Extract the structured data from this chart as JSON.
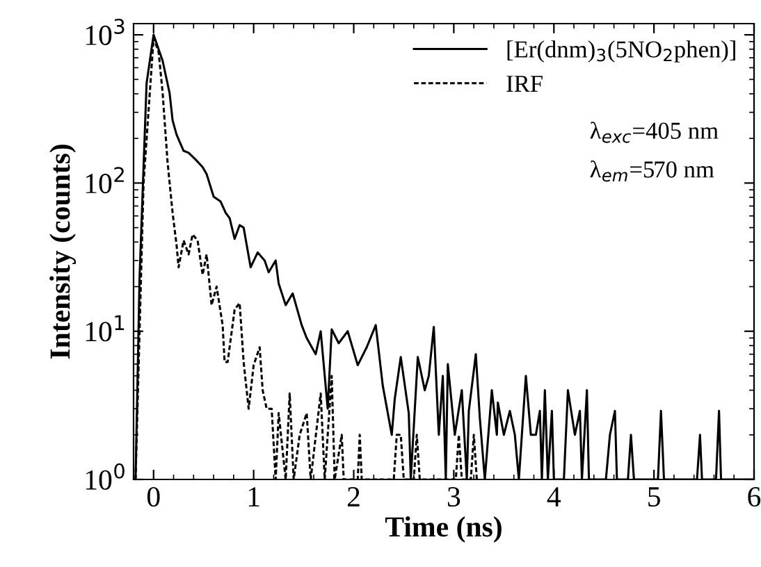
{
  "chart_data": {
    "type": "line",
    "xlabel": "Time (ns)",
    "ylabel": "Intensity (counts)",
    "log": "y",
    "xlim": [
      -0.2,
      6
    ],
    "ylim": [
      1,
      1190
    ],
    "xticks": [
      0,
      1,
      2,
      3,
      4,
      5,
      6
    ],
    "yticks": [
      {
        "value": 1,
        "label": "10$^{0}$"
      },
      {
        "value": 10,
        "label": "10$^{1}$"
      },
      {
        "value": 100,
        "label": "10$^{2}$"
      },
      {
        "value": 1000,
        "label": "10$^{3}$"
      }
    ],
    "grid": false,
    "legend": "top right",
    "marker": "none",
    "series": [
      {
        "name": "[Er(dnm)$_{3}$(5NO$_{2}$phen)]",
        "color": "#000000",
        "line_style": "solid",
        "x": [
          -0.18,
          -0.14,
          -0.07,
          0,
          0.09,
          0.16,
          0.19,
          0.23,
          0.3,
          0.35,
          0.42,
          0.49,
          0.53,
          0.6,
          0.67,
          0.72,
          0.76,
          0.81,
          0.86,
          0.9,
          0.97,
          1.04,
          1.11,
          1.15,
          1.22,
          1.25,
          1.32,
          1.39,
          1.48,
          1.53,
          1.62,
          1.67,
          1.74,
          1.78,
          1.85,
          1.94,
          2.04,
          2.13,
          2.22,
          2.29,
          2.38,
          2.41,
          2.47,
          2.55,
          2.57,
          2.64,
          2.71,
          2.75,
          2.8,
          2.85,
          2.89,
          2.92,
          2.94,
          3.01,
          3.08,
          3.13,
          3.15,
          3.22,
          3.26,
          3.31,
          3.38,
          3.43,
          3.44,
          3.5,
          3.56,
          3.61,
          3.65,
          3.68,
          3.72,
          3.77,
          3.82,
          3.86,
          3.88,
          3.91,
          3.94,
          3.98,
          4.0,
          4.1,
          4.14,
          4.21,
          4.26,
          4.28,
          4.33,
          4.35,
          4.52,
          4.56,
          4.61,
          4.63,
          4.74,
          4.77,
          4.8,
          5.04,
          5.07,
          5.1,
          5.43,
          5.46,
          5.48,
          5.62,
          5.65,
          5.67,
          6.0
        ],
        "values": [
          1,
          23,
          470,
          1000,
          670,
          405,
          265,
          212,
          165,
          160,
          144,
          128,
          115,
          81,
          75,
          63,
          58,
          42,
          52,
          50,
          27,
          34,
          30,
          25,
          30,
          21,
          15,
          18,
          11,
          9,
          7,
          10,
          3,
          10.3,
          8.3,
          10,
          5.9,
          7.8,
          11,
          4.3,
          2,
          3.5,
          6.7,
          2.8,
          1,
          6.7,
          4,
          5,
          10.7,
          2,
          5,
          1,
          6,
          2,
          4,
          1,
          2.9,
          7,
          2.6,
          1,
          4,
          2,
          3.3,
          2,
          2.9,
          2,
          1,
          2,
          5,
          2,
          2,
          2.9,
          1,
          4,
          1,
          2.9,
          1,
          1,
          4,
          2,
          2.9,
          1,
          4,
          1,
          1,
          2,
          2.9,
          1,
          1,
          2,
          1,
          1,
          2.9,
          1,
          1,
          2,
          1,
          1,
          2.9,
          1,
          1
        ]
      },
      {
        "name": "IRF",
        "color": "#000000",
        "line_style": "dashed",
        "x": [
          -0.18,
          -0.1,
          0,
          0.05,
          0.09,
          0.14,
          0.19,
          0.23,
          0.25,
          0.3,
          0.35,
          0.39,
          0.44,
          0.49,
          0.53,
          0.58,
          0.63,
          0.69,
          0.71,
          0.74,
          0.81,
          0.86,
          0.9,
          0.95,
          1.0,
          1.06,
          1.09,
          1.13,
          1.18,
          1.22,
          1.25,
          1.32,
          1.36,
          1.4,
          1.46,
          1.53,
          1.57,
          1.67,
          1.71,
          1.78,
          1.81,
          1.88,
          1.9,
          2.04,
          2.06,
          2.08,
          2.4,
          2.43,
          2.47,
          2.5,
          2.6,
          2.63,
          2.66,
          3.02,
          3.05,
          3.08,
          3.17,
          3.2,
          3.23
        ],
        "values": [
          1,
          100,
          950,
          770,
          410,
          138,
          63,
          38,
          27,
          41,
          33,
          45,
          41,
          24,
          33,
          15,
          20,
          11,
          6.2,
          6.2,
          14,
          15.5,
          6.2,
          3,
          5.9,
          7.8,
          4,
          3,
          3,
          1,
          2.8,
          1,
          3.8,
          1,
          2,
          2.8,
          1,
          3.8,
          1,
          5,
          1,
          2,
          1,
          1,
          2,
          1,
          1,
          2,
          2,
          1,
          1,
          2,
          1,
          1,
          2,
          1,
          1,
          2,
          1
        ]
      }
    ],
    "annotations": [
      "λ$_{exc}$=405 nm",
      "λ$_{em}$=570 nm"
    ]
  }
}
